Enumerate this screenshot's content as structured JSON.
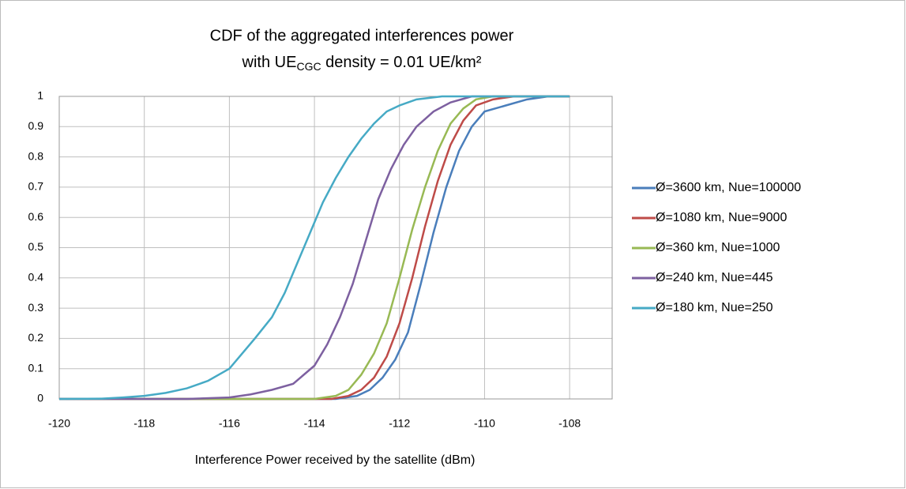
{
  "chart_data": {
    "type": "line",
    "title": [
      "CDF of the aggregated interferences power",
      {
        "parts": [
          "with UE",
          "CGC",
          " density = 0.01 UE/km²"
        ]
      }
    ],
    "xlabel": "Interference Power received by the satellite (dBm)",
    "xlim": [
      -120,
      -107
    ],
    "xticks": [
      -120,
      -118,
      -116,
      -114,
      -112,
      -110,
      -108
    ],
    "ylim": [
      0,
      1
    ],
    "yticks": [
      0,
      0.1,
      0.2,
      0.3,
      0.4,
      0.5,
      0.6,
      0.7,
      0.8,
      0.9,
      1
    ],
    "grid": true,
    "legend": "right",
    "series": [
      {
        "name": "Ø=3600 km, Nue=100000",
        "color": "#4a7ebb",
        "x": [
          -120,
          -113.5,
          -113,
          -112.7,
          -112.4,
          -112.1,
          -111.8,
          -111.5,
          -111.2,
          -110.9,
          -110.6,
          -110.3,
          -110,
          -109.5,
          -109,
          -108.5,
          -108
        ],
        "values": [
          0,
          0,
          0.01,
          0.03,
          0.07,
          0.13,
          0.22,
          0.38,
          0.55,
          0.7,
          0.82,
          0.9,
          0.95,
          0.97,
          0.99,
          1,
          1
        ]
      },
      {
        "name": "Ø=1080 km, Nue=9000",
        "color": "#be4b48",
        "x": [
          -120,
          -113.6,
          -113.2,
          -112.9,
          -112.6,
          -112.3,
          -112,
          -111.7,
          -111.4,
          -111.1,
          -110.8,
          -110.5,
          -110.2,
          -109.8,
          -109.3,
          -108
        ],
        "values": [
          0,
          0,
          0.01,
          0.03,
          0.07,
          0.14,
          0.25,
          0.4,
          0.57,
          0.72,
          0.84,
          0.92,
          0.97,
          0.99,
          1,
          1
        ]
      },
      {
        "name": "Ø=360 km, Nue=1000",
        "color": "#98b954",
        "x": [
          -120,
          -114,
          -113.5,
          -113.2,
          -112.9,
          -112.6,
          -112.3,
          -112,
          -111.7,
          -111.4,
          -111.1,
          -110.8,
          -110.5,
          -110.2,
          -109.8,
          -108
        ],
        "values": [
          0,
          0,
          0.01,
          0.03,
          0.08,
          0.15,
          0.25,
          0.4,
          0.56,
          0.7,
          0.82,
          0.91,
          0.96,
          0.99,
          1,
          1
        ]
      },
      {
        "name": "Ø=240 km, Nue=445",
        "color": "#7d60a0",
        "x": [
          -120,
          -117,
          -116,
          -115.5,
          -115,
          -114.5,
          -114,
          -113.7,
          -113.4,
          -113.1,
          -112.8,
          -112.5,
          -112.2,
          -111.9,
          -111.6,
          -111.2,
          -110.8,
          -110.3,
          -108
        ],
        "values": [
          0,
          0,
          0.005,
          0.015,
          0.03,
          0.05,
          0.11,
          0.18,
          0.27,
          0.38,
          0.52,
          0.66,
          0.76,
          0.84,
          0.9,
          0.95,
          0.98,
          1,
          1
        ]
      },
      {
        "name": "Ø=180 km, Nue=250",
        "color": "#46aac5",
        "x": [
          -120,
          -119,
          -118.5,
          -118,
          -117.5,
          -117,
          -116.5,
          -116,
          -115.7,
          -115.4,
          -115,
          -114.7,
          -114.4,
          -114.1,
          -113.8,
          -113.5,
          -113.2,
          -112.9,
          -112.6,
          -112.3,
          -112,
          -111.6,
          -111,
          -108
        ],
        "values": [
          0,
          0.001,
          0.005,
          0.01,
          0.02,
          0.035,
          0.06,
          0.1,
          0.15,
          0.2,
          0.27,
          0.35,
          0.45,
          0.55,
          0.65,
          0.73,
          0.8,
          0.86,
          0.91,
          0.95,
          0.97,
          0.99,
          1,
          1
        ]
      }
    ]
  }
}
